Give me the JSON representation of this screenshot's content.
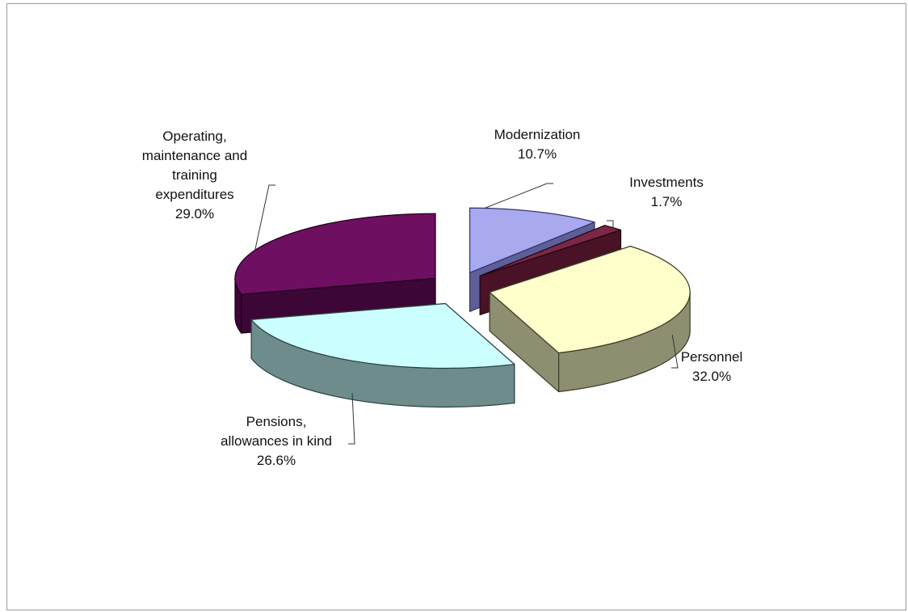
{
  "chart_data": {
    "type": "pie",
    "style": "3d-exploded",
    "start_angle_deg": 90,
    "direction": "clockwise",
    "slices": [
      {
        "label_lines": [
          "Modernization"
        ],
        "percent_label": "10.7%",
        "value": 10.7,
        "color": "#a9a9ef",
        "dark": "#5e5e98",
        "edge": "#34346a"
      },
      {
        "label_lines": [
          "Investments"
        ],
        "percent_label": "1.7%",
        "value": 1.7,
        "color": "#7a2845",
        "dark": "#4a1226",
        "edge": "#1f0510"
      },
      {
        "label_lines": [
          "Personnel"
        ],
        "percent_label": "32.0%",
        "value": 32.0,
        "color": "#ffffcc",
        "dark": "#8e8e70",
        "edge": "#3a3a28"
      },
      {
        "label_lines": [
          "Pensions,",
          "allowances in kind"
        ],
        "percent_label": "26.6%",
        "value": 26.6,
        "color": "#ccffff",
        "dark": "#6e8c8c",
        "edge": "#2c4040"
      },
      {
        "label_lines": [
          "Operating,",
          "maintenance and",
          "training",
          "expenditures"
        ],
        "percent_label": "29.0%",
        "value": 29.0,
        "color": "#6e0f62",
        "dark": "#3c0636",
        "edge": "#1c0019"
      }
    ],
    "legend": "none"
  }
}
